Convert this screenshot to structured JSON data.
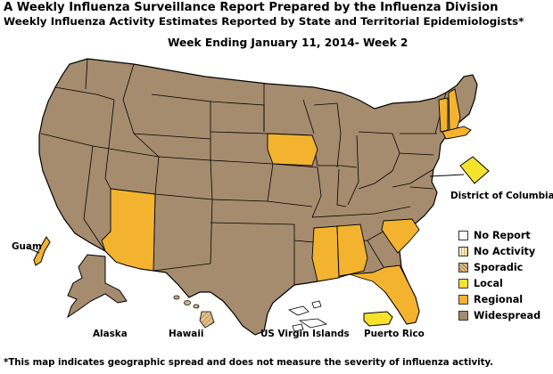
{
  "title_line1": "A Weekly Influenza Surveillance Report Prepared by the Influenza Division",
  "title_line2": "Weekly Influenza Activity Estimates Reported by State and Territorial Epidemiologists*",
  "title_line3": "Week Ending January 11, 2014- Week 2",
  "footnote": "*This map indicates geographic spread and does not measure the severity of influenza activity.",
  "map_labels": {
    "dc": "District of Columbia",
    "guam": "Guam",
    "alaska": "Alaska",
    "hawaii": "Hawaii",
    "usvi": "US Virgin Islands",
    "pr": "Puerto Rico"
  },
  "legend": [
    {
      "label": "No Report",
      "color": "#ffffff",
      "pattern": "none"
    },
    {
      "label": "No Activity",
      "color": "#fdf3c8",
      "pattern": "stripes"
    },
    {
      "label": "Sporadic",
      "color": "#e2c08a",
      "pattern": "hatch"
    },
    {
      "label": "Local",
      "color": "#f4e22c",
      "pattern": "none"
    },
    {
      "label": "Regional",
      "color": "#f3b32f",
      "pattern": "none"
    },
    {
      "label": "Widespread",
      "color": "#a58c6e",
      "pattern": "none"
    }
  ],
  "colors": {
    "widespread": "#a58c6e",
    "regional": "#f3b32f",
    "local": "#f4e22c",
    "sporadic": "#e2c08a",
    "border": "#000000"
  },
  "activity": {
    "regional": [
      "Arizona",
      "Iowa",
      "Mississippi",
      "Alabama",
      "South Carolina",
      "Florida",
      "Vermont",
      "New Hampshire",
      "Massachusetts",
      "Guam"
    ],
    "local": [
      "District of Columbia",
      "Puerto Rico"
    ],
    "sporadic": [
      "Hawaii"
    ],
    "no_report": [
      "US Virgin Islands"
    ],
    "widespread": [
      "all other states",
      "Alaska"
    ]
  }
}
